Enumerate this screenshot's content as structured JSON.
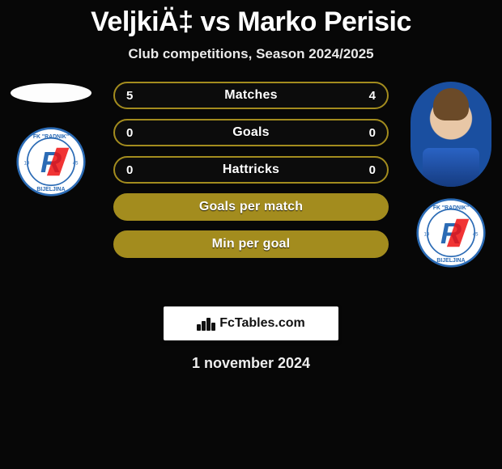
{
  "title": "VeljkiÄ‡ vs Marko Perisic",
  "subtitle": "Club competitions, Season 2024/2025",
  "brand": "FcTables.com",
  "date": "1 november 2024",
  "style": {
    "background": "#070707",
    "pill_text_color": "#ffffff",
    "primary_color": "#a38c1e"
  },
  "club_logo": {
    "text_top": "FK \"RADNIK\"",
    "text_bottom": "BIJELJINA",
    "year": "1945",
    "ring_color": "#2b6bb5",
    "inner_bg": "#ffffff",
    "letter_color": "#2b6bb5",
    "accent_color": "#e11"
  },
  "rows": [
    {
      "left": "5",
      "label": "Matches",
      "right": "4",
      "border": "#a38c1e",
      "fill": "#0c0c0c",
      "fill_width": 0,
      "label_color": "#ffffff",
      "val_color": "#ffffff"
    },
    {
      "left": "0",
      "label": "Goals",
      "right": "0",
      "border": "#a38c1e",
      "fill": "#0c0c0c",
      "fill_width": 0,
      "label_color": "#ffffff",
      "val_color": "#ffffff"
    },
    {
      "left": "0",
      "label": "Hattricks",
      "right": "0",
      "border": "#a38c1e",
      "fill": "#0c0c0c",
      "fill_width": 0,
      "label_color": "#ffffff",
      "val_color": "#ffffff"
    },
    {
      "left": "",
      "label": "Goals per match",
      "right": "",
      "border": "#a38c1e",
      "fill": "#a38c1e",
      "fill_width": 100,
      "label_color": "#ffffff",
      "val_color": "#ffffff"
    },
    {
      "left": "",
      "label": "Min per goal",
      "right": "",
      "border": "#a38c1e",
      "fill": "#a38c1e",
      "fill_width": 100,
      "label_color": "#ffffff",
      "val_color": "#ffffff"
    }
  ]
}
